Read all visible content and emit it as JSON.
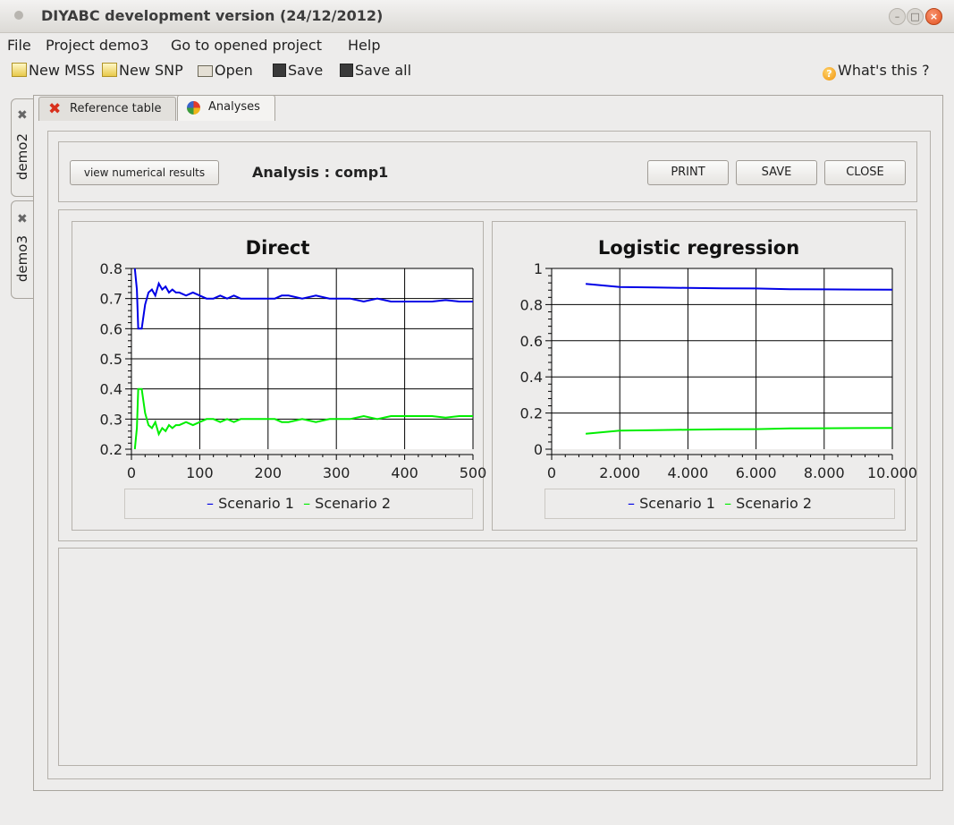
{
  "window": {
    "title": "DIYABC development version  (24/12/2012)"
  },
  "menu": [
    {
      "label": "File"
    },
    {
      "label": "Project demo3"
    },
    {
      "label": "Go to opened project"
    },
    {
      "label": "Help"
    }
  ],
  "toolbar": {
    "new_mss": "New MSS",
    "new_snp": "New SNP",
    "open": "Open",
    "save": "Save",
    "save_all": "Save all",
    "whats_this": "What's this ?"
  },
  "project_tabs": [
    {
      "label": "demo2"
    },
    {
      "label": "demo3"
    }
  ],
  "tabs": [
    {
      "label": "Reference table"
    },
    {
      "label": "Analyses"
    }
  ],
  "analysis": {
    "view_button": "view numerical results",
    "title": "Analysis : comp1",
    "print": "PRINT",
    "save": "SAVE",
    "close": "CLOSE"
  },
  "colors": {
    "scenario1": "#0000e6",
    "scenario2": "#00ee00"
  },
  "chart_data": [
    {
      "type": "line",
      "title": "Direct",
      "xlabel": "",
      "ylabel": "",
      "xlim": [
        0,
        500
      ],
      "ylim": [
        0.2,
        0.8
      ],
      "xticks": [
        0,
        100,
        200,
        300,
        400,
        500
      ],
      "xtick_labels": [
        "0",
        "100",
        "200",
        "300",
        "400",
        "500"
      ],
      "yticks": [
        0.2,
        0.3,
        0.4,
        0.5,
        0.6,
        0.7,
        0.8
      ],
      "ytick_labels": [
        "0.2",
        "0.3",
        "0.4",
        "0.5",
        "0.6",
        "0.7",
        "0.8"
      ],
      "grid": true,
      "legend": "bottom",
      "series": [
        {
          "name": "Scenario 1",
          "color": "#0000e6",
          "x": [
            5,
            8,
            10,
            12,
            15,
            20,
            25,
            30,
            35,
            40,
            45,
            50,
            55,
            60,
            65,
            70,
            80,
            90,
            100,
            110,
            120,
            130,
            140,
            150,
            160,
            170,
            180,
            200,
            210,
            220,
            230,
            240,
            250,
            270,
            290,
            300,
            320,
            340,
            360,
            380,
            400,
            420,
            440,
            460,
            480,
            500
          ],
          "y": [
            0.8,
            0.73,
            0.6,
            0.6,
            0.6,
            0.68,
            0.72,
            0.73,
            0.71,
            0.75,
            0.73,
            0.74,
            0.72,
            0.73,
            0.72,
            0.72,
            0.71,
            0.72,
            0.71,
            0.7,
            0.7,
            0.71,
            0.7,
            0.71,
            0.7,
            0.7,
            0.7,
            0.7,
            0.7,
            0.71,
            0.71,
            0.705,
            0.7,
            0.71,
            0.7,
            0.7,
            0.7,
            0.69,
            0.7,
            0.69,
            0.69,
            0.69,
            0.69,
            0.695,
            0.69,
            0.69
          ]
        },
        {
          "name": "Scenario 2",
          "color": "#00ee00",
          "x": [
            5,
            8,
            10,
            12,
            15,
            20,
            25,
            30,
            35,
            40,
            45,
            50,
            55,
            60,
            65,
            70,
            80,
            90,
            100,
            110,
            120,
            130,
            140,
            150,
            160,
            170,
            180,
            200,
            210,
            220,
            230,
            240,
            250,
            270,
            290,
            300,
            320,
            340,
            360,
            380,
            400,
            420,
            440,
            460,
            480,
            500
          ],
          "y": [
            0.2,
            0.27,
            0.4,
            0.4,
            0.4,
            0.32,
            0.28,
            0.27,
            0.29,
            0.25,
            0.27,
            0.26,
            0.28,
            0.27,
            0.28,
            0.28,
            0.29,
            0.28,
            0.29,
            0.3,
            0.3,
            0.29,
            0.3,
            0.29,
            0.3,
            0.3,
            0.3,
            0.3,
            0.3,
            0.29,
            0.29,
            0.295,
            0.3,
            0.29,
            0.3,
            0.3,
            0.3,
            0.31,
            0.3,
            0.31,
            0.31,
            0.31,
            0.31,
            0.305,
            0.31,
            0.31
          ]
        }
      ]
    },
    {
      "type": "line",
      "title": "Logistic regression",
      "xlabel": "",
      "ylabel": "",
      "xlim": [
        0,
        10000
      ],
      "ylim": [
        0,
        1
      ],
      "xticks": [
        0,
        2000,
        4000,
        6000,
        8000,
        10000
      ],
      "xtick_labels": [
        "0",
        "2.000",
        "4.000",
        "6.000",
        "8.000",
        "10.000"
      ],
      "yticks": [
        0,
        0.2,
        0.4,
        0.6,
        0.8,
        1
      ],
      "ytick_labels": [
        "0",
        "0.2",
        "0.4",
        "0.6",
        "0.8",
        "1"
      ],
      "grid": true,
      "legend": "bottom",
      "series": [
        {
          "name": "Scenario 1",
          "color": "#0000e6",
          "x": [
            1000,
            2000,
            3000,
            4000,
            5000,
            6000,
            7000,
            8000,
            9000,
            10000
          ],
          "y": [
            0.915,
            0.897,
            0.895,
            0.892,
            0.89,
            0.889,
            0.885,
            0.884,
            0.883,
            0.882
          ]
        },
        {
          "name": "Scenario 2",
          "color": "#00ee00",
          "x": [
            1000,
            2000,
            3000,
            4000,
            5000,
            6000,
            7000,
            8000,
            9000,
            10000
          ],
          "y": [
            0.085,
            0.103,
            0.105,
            0.108,
            0.11,
            0.111,
            0.115,
            0.116,
            0.117,
            0.118
          ]
        }
      ]
    }
  ]
}
